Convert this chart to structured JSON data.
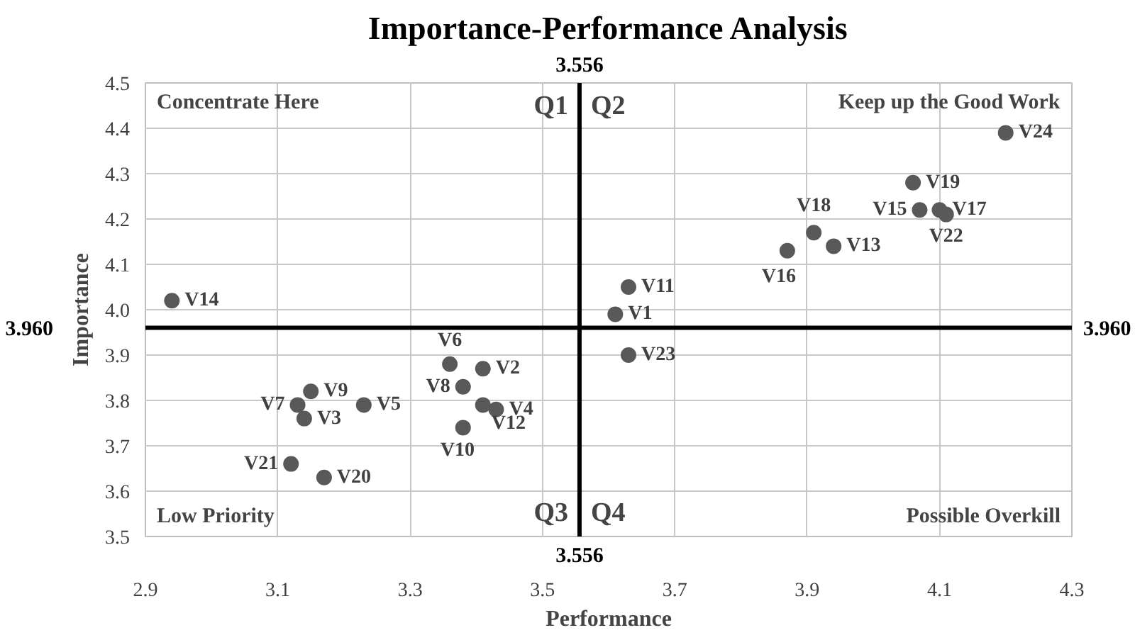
{
  "chart_data": {
    "type": "scatter",
    "title": "Importance-Performance Analysis",
    "xlabel": "Performance",
    "ylabel": "Importance",
    "xlim": [
      2.9,
      4.3
    ],
    "xticks": [
      2.9,
      3.1,
      3.3,
      3.5,
      3.7,
      3.9,
      4.1,
      4.3
    ],
    "ylim": [
      3.5,
      4.5
    ],
    "yticks": [
      3.5,
      3.6,
      3.7,
      3.8,
      3.9,
      {
        "value": 4,
        "label": "4.0"
      },
      4.1,
      4.2,
      4.3,
      4.4,
      4.5
    ],
    "grid": true,
    "marker": "circle",
    "ref_lines": [
      {
        "axis": "x",
        "value": 3.556,
        "label": "3.556",
        "color": "#000000"
      },
      {
        "axis": "y",
        "value": 3.96,
        "label": "3.960",
        "color": "#000000"
      }
    ],
    "annotations": [
      "Concentrate Here",
      "Keep up the Good Work",
      "Low Priority",
      "Possible Overkill",
      "Q1",
      "Q2",
      "Q3",
      "Q4"
    ],
    "series": [
      {
        "name": "V1",
        "color": "#595959",
        "x": [
          3.61
        ],
        "values": [
          3.99
        ]
      },
      {
        "name": "V2",
        "color": "#595959",
        "x": [
          3.41
        ],
        "values": [
          3.87
        ]
      },
      {
        "name": "V3",
        "color": "#595959",
        "x": [
          3.14
        ],
        "values": [
          3.76
        ]
      },
      {
        "name": "V4",
        "color": "#595959",
        "x": [
          3.43
        ],
        "values": [
          3.78
        ]
      },
      {
        "name": "V5",
        "color": "#595959",
        "x": [
          3.23
        ],
        "values": [
          3.79
        ]
      },
      {
        "name": "V6",
        "color": "#595959",
        "x": [
          3.36
        ],
        "values": [
          3.88
        ]
      },
      {
        "name": "V7",
        "color": "#595959",
        "x": [
          3.13
        ],
        "values": [
          3.79
        ]
      },
      {
        "name": "V8",
        "color": "#595959",
        "x": [
          3.38
        ],
        "values": [
          3.83
        ]
      },
      {
        "name": "V9",
        "color": "#595959",
        "x": [
          3.15
        ],
        "values": [
          3.82
        ]
      },
      {
        "name": "V10",
        "color": "#595959",
        "x": [
          3.38
        ],
        "values": [
          3.74
        ]
      },
      {
        "name": "V11",
        "color": "#595959",
        "x": [
          3.63
        ],
        "values": [
          4.05
        ]
      },
      {
        "name": "V12",
        "color": "#595959",
        "x": [
          3.41
        ],
        "values": [
          3.79
        ]
      },
      {
        "name": "V13",
        "color": "#595959",
        "x": [
          3.94
        ],
        "values": [
          4.14
        ]
      },
      {
        "name": "V14",
        "color": "#595959",
        "x": [
          2.94
        ],
        "values": [
          4.02
        ]
      },
      {
        "name": "V15",
        "color": "#595959",
        "x": [
          4.07
        ],
        "values": [
          4.22
        ]
      },
      {
        "name": "V16",
        "color": "#595959",
        "x": [
          3.87
        ],
        "values": [
          4.13
        ]
      },
      {
        "name": "V17",
        "color": "#595959",
        "x": [
          4.1
        ],
        "values": [
          4.22
        ]
      },
      {
        "name": "V18",
        "color": "#595959",
        "x": [
          3.91
        ],
        "values": [
          4.17
        ]
      },
      {
        "name": "V19",
        "color": "#595959",
        "x": [
          4.06
        ],
        "values": [
          4.28
        ]
      },
      {
        "name": "V20",
        "color": "#595959",
        "x": [
          3.17
        ],
        "values": [
          3.63
        ]
      },
      {
        "name": "V21",
        "color": "#595959",
        "x": [
          3.12
        ],
        "values": [
          3.66
        ]
      },
      {
        "name": "V22",
        "color": "#595959",
        "x": [
          4.11
        ],
        "values": [
          4.21
        ]
      },
      {
        "name": "V23",
        "color": "#595959",
        "x": [
          3.63
        ],
        "values": [
          3.9
        ]
      },
      {
        "name": "V24",
        "color": "#595959",
        "x": [
          4.2
        ],
        "values": [
          4.39
        ]
      }
    ]
  }
}
